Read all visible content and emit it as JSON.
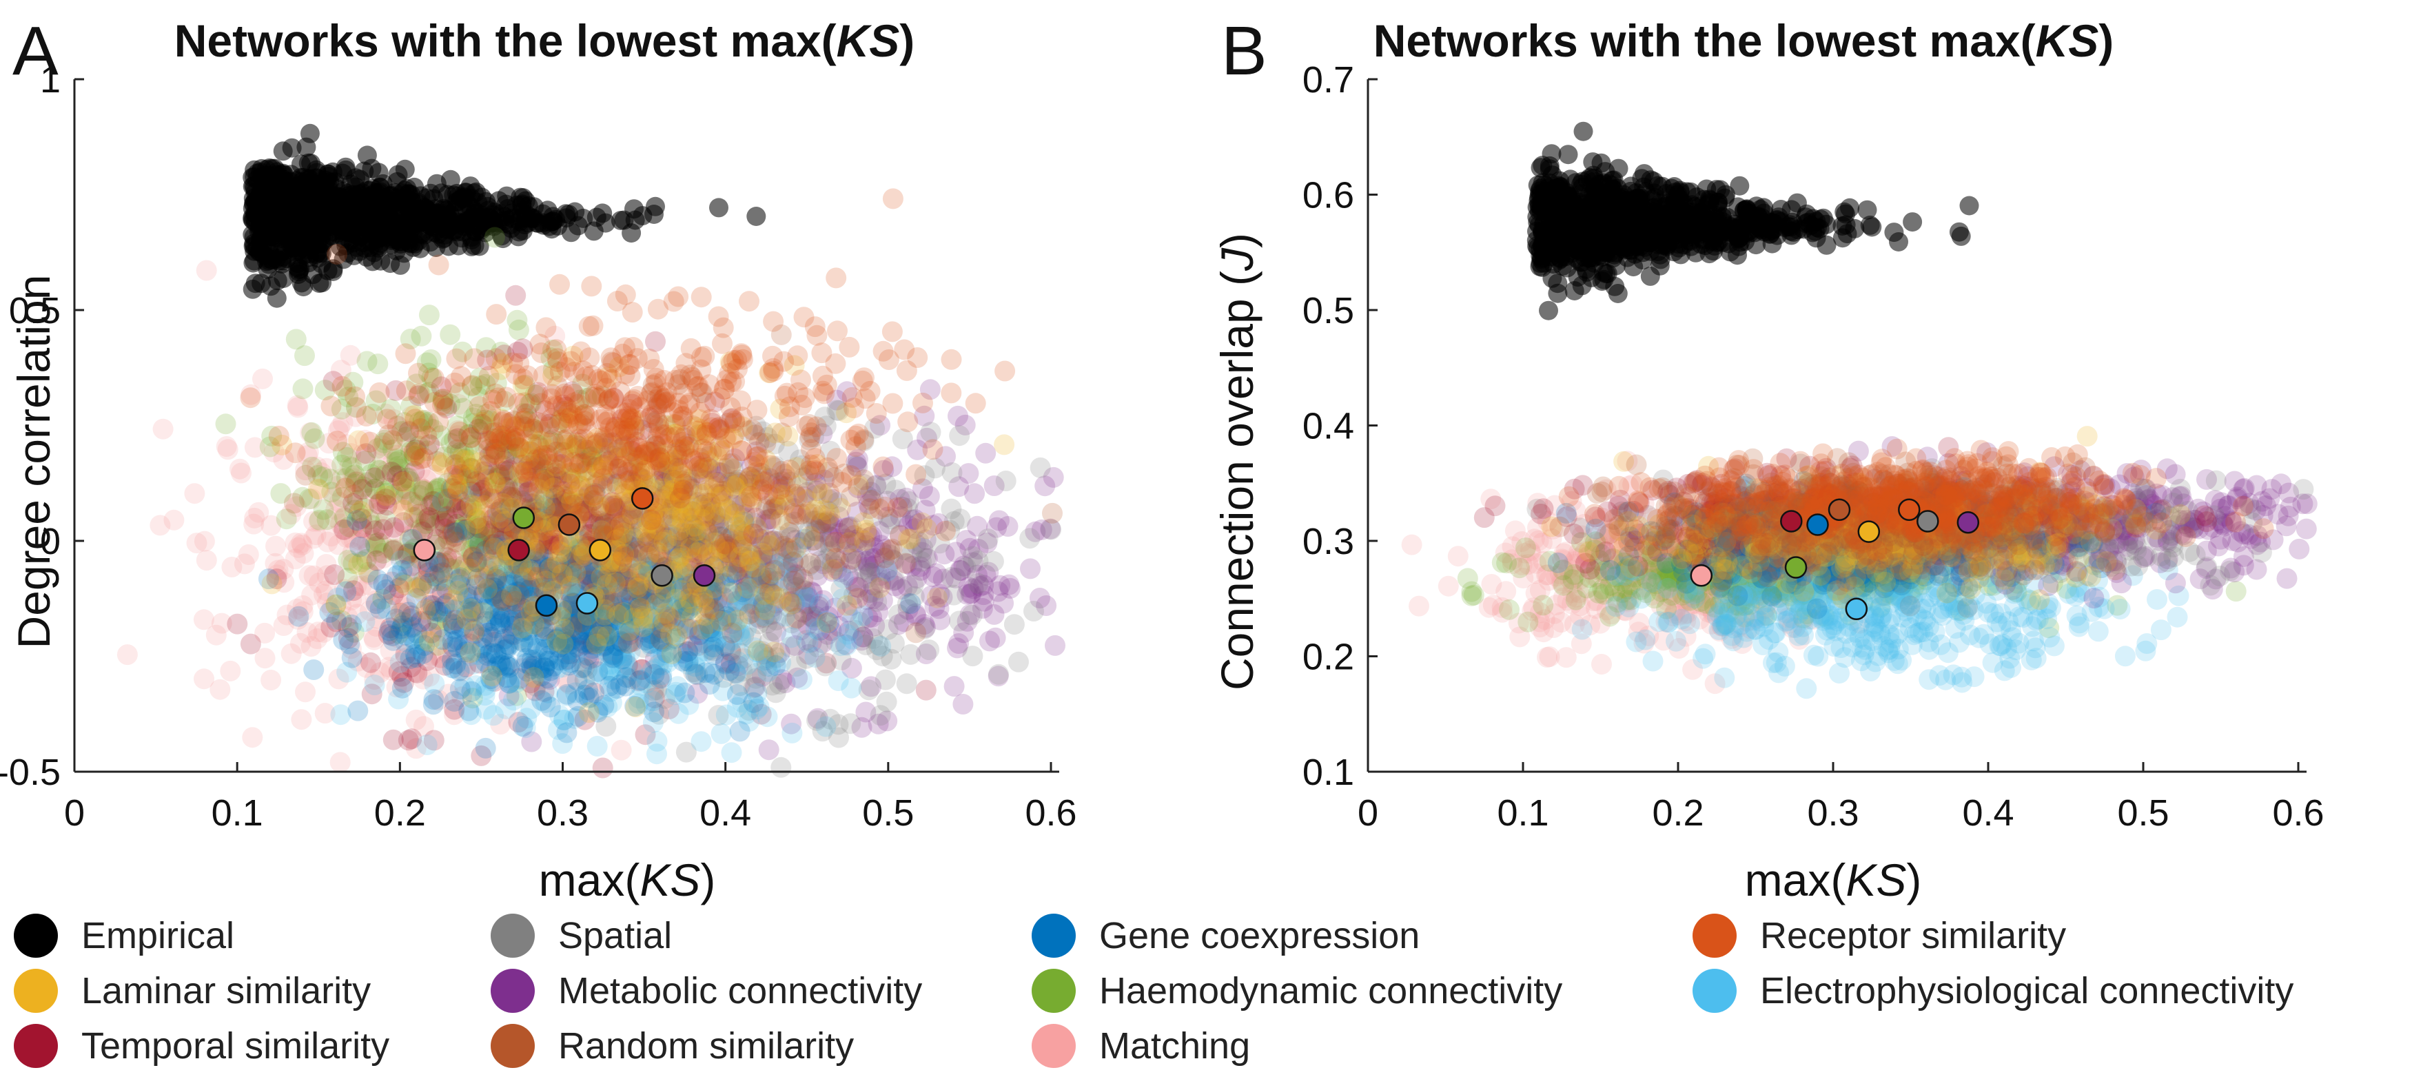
{
  "panels": [
    {
      "letter": "A",
      "title": "Networks with the lowest max(",
      "title_italic": "KS",
      "title_end": ")",
      "xlabel": "max(",
      "xlabel_italic": "KS",
      "xlabel_end": ")",
      "ylabel": "Degree correlation"
    },
    {
      "letter": "B",
      "title": "Networks with the lowest max(",
      "title_italic": "KS",
      "title_end": ")",
      "xlabel": "max(",
      "xlabel_italic": "KS",
      "xlabel_end": ")",
      "ylabel": "Connection overlap (",
      "ylabel_italic": "J",
      "ylabel_end": ")"
    }
  ],
  "legend": {
    "items": [
      {
        "label": "Empirical",
        "color": "#000000"
      },
      {
        "label": "Spatial",
        "color": "#808080"
      },
      {
        "label": "Gene coexpression",
        "color": "#0072BD"
      },
      {
        "label": "Receptor similarity",
        "color": "#D95319"
      },
      {
        "label": "Laminar similarity",
        "color": "#EDB120"
      },
      {
        "label": "Metabolic connectivity",
        "color": "#7E2F8E"
      },
      {
        "label": "Haemodynamic connectivity",
        "color": "#77AC30"
      },
      {
        "label": "Electrophysiological connectivity",
        "color": "#4DBEEE"
      },
      {
        "label": "Temporal similarity",
        "color": "#A2142F"
      },
      {
        "label": "Random similarity",
        "color": "#B5562A"
      },
      {
        "label": "Matching",
        "color": "#F7A1A1"
      }
    ]
  },
  "chart_data": [
    {
      "type": "scatter",
      "title": "Networks with the lowest max(KS)",
      "xlabel": "max(KS)",
      "ylabel": "Degree correlation",
      "xlim": [
        0,
        0.6
      ],
      "ylim": [
        -0.5,
        1
      ],
      "xticks": [
        "0",
        "0.1",
        "0.2",
        "0.3",
        "0.4",
        "0.5",
        "0.6"
      ],
      "yticks": [
        "-0.5",
        "0",
        "0.5",
        "1"
      ],
      "ytick_values": [
        -0.5,
        0,
        0.5,
        1
      ],
      "clouds": [
        {
          "name": "Empirical",
          "color": "#000000",
          "cx": 0.15,
          "cy": 0.7,
          "sx": 0.075,
          "sy": 0.09,
          "shape": "wedge"
        },
        {
          "name": "Matching",
          "color": "#F7A1A1",
          "cx": 0.2,
          "cy": -0.02,
          "sx": 0.06,
          "sy": 0.17
        },
        {
          "name": "Haemodynamic connectivity",
          "color": "#77AC30",
          "cx": 0.24,
          "cy": 0.12,
          "sx": 0.05,
          "sy": 0.15
        },
        {
          "name": "Temporal similarity",
          "color": "#A2142F",
          "cx": 0.3,
          "cy": -0.03,
          "sx": 0.07,
          "sy": 0.17
        },
        {
          "name": "Metabolic connectivity",
          "color": "#7E2F8E",
          "cx": 0.46,
          "cy": -0.06,
          "sx": 0.08,
          "sy": 0.14
        },
        {
          "name": "Spatial",
          "color": "#808080",
          "cx": 0.42,
          "cy": -0.05,
          "sx": 0.07,
          "sy": 0.15
        },
        {
          "name": "Electrophysiological connectivity",
          "color": "#4DBEEE",
          "cx": 0.33,
          "cy": -0.2,
          "sx": 0.07,
          "sy": 0.1
        },
        {
          "name": "Gene coexpression",
          "color": "#0072BD",
          "cx": 0.3,
          "cy": -0.17,
          "sx": 0.06,
          "sy": 0.1
        },
        {
          "name": "Random similarity",
          "color": "#B5562A",
          "cx": 0.35,
          "cy": 0.05,
          "sx": 0.07,
          "sy": 0.12
        },
        {
          "name": "Laminar similarity",
          "color": "#EDB120",
          "cx": 0.34,
          "cy": 0.04,
          "sx": 0.07,
          "sy": 0.14
        },
        {
          "name": "Receptor similarity",
          "color": "#D95319",
          "cx": 0.35,
          "cy": 0.27,
          "sx": 0.08,
          "sy": 0.11
        }
      ],
      "series": [
        {
          "name": "Empirical",
          "color": "#FFFFFF",
          "x": 0.094,
          "y": 0.71
        },
        {
          "name": "Matching",
          "color": "#F7A1A1",
          "x": 0.215,
          "y": -0.02
        },
        {
          "name": "Temporal similarity",
          "color": "#A2142F",
          "x": 0.273,
          "y": -0.02
        },
        {
          "name": "Haemodynamic connectivity",
          "color": "#77AC30",
          "x": 0.276,
          "y": 0.05
        },
        {
          "name": "Random similarity",
          "color": "#B5562A",
          "x": 0.304,
          "y": 0.035
        },
        {
          "name": "Gene coexpression",
          "color": "#0072BD",
          "x": 0.29,
          "y": -0.14
        },
        {
          "name": "Electrophysiological connectivity",
          "color": "#4DBEEE",
          "x": 0.315,
          "y": -0.135
        },
        {
          "name": "Laminar similarity",
          "color": "#EDB120",
          "x": 0.323,
          "y": -0.02
        },
        {
          "name": "Receptor similarity",
          "color": "#D95319",
          "x": 0.349,
          "y": 0.092
        },
        {
          "name": "Spatial",
          "color": "#808080",
          "x": 0.361,
          "y": -0.075
        },
        {
          "name": "Metabolic connectivity",
          "color": "#7E2F8E",
          "x": 0.387,
          "y": -0.075
        }
      ]
    },
    {
      "type": "scatter",
      "title": "Networks with the lowest max(KS)",
      "xlabel": "max(KS)",
      "ylabel": "Connection overlap (J)",
      "xlim": [
        0,
        0.6
      ],
      "ylim": [
        0.1,
        0.7
      ],
      "xticks": [
        "0",
        "0.1",
        "0.2",
        "0.3",
        "0.4",
        "0.5",
        "0.6"
      ],
      "yticks": [
        "0.1",
        "0.2",
        "0.3",
        "0.4",
        "0.5",
        "0.6",
        "0.7"
      ],
      "ytick_values": [
        0.1,
        0.2,
        0.3,
        0.4,
        0.5,
        0.6,
        0.7
      ],
      "clouds": [
        {
          "name": "Empirical",
          "color": "#000000",
          "cx": 0.15,
          "cy": 0.575,
          "sx": 0.075,
          "sy": 0.035,
          "shape": "wedge"
        },
        {
          "name": "Matching",
          "color": "#F7A1A1",
          "cx": 0.19,
          "cy": 0.27,
          "sx": 0.055,
          "sy": 0.03
        },
        {
          "name": "Haemodynamic connectivity",
          "color": "#77AC30",
          "cx": 0.26,
          "cy": 0.27,
          "sx": 0.07,
          "sy": 0.015
        },
        {
          "name": "Electrophysiological connectivity",
          "color": "#4DBEEE",
          "cx": 0.33,
          "cy": 0.24,
          "sx": 0.075,
          "sy": 0.025
        },
        {
          "name": "Metabolic connectivity",
          "color": "#7E2F8E",
          "cx": 0.45,
          "cy": 0.315,
          "sx": 0.09,
          "sy": 0.022
        },
        {
          "name": "Spatial",
          "color": "#808080",
          "cx": 0.38,
          "cy": 0.31,
          "sx": 0.09,
          "sy": 0.02
        },
        {
          "name": "Temporal similarity",
          "color": "#A2142F",
          "cx": 0.29,
          "cy": 0.315,
          "sx": 0.07,
          "sy": 0.02
        },
        {
          "name": "Gene coexpression",
          "color": "#0072BD",
          "cx": 0.31,
          "cy": 0.3,
          "sx": 0.06,
          "sy": 0.02
        },
        {
          "name": "Laminar similarity",
          "color": "#EDB120",
          "cx": 0.33,
          "cy": 0.305,
          "sx": 0.07,
          "sy": 0.02
        },
        {
          "name": "Random similarity",
          "color": "#B5562A",
          "cx": 0.32,
          "cy": 0.32,
          "sx": 0.07,
          "sy": 0.02
        },
        {
          "name": "Receptor similarity",
          "color": "#D95319",
          "cx": 0.35,
          "cy": 0.335,
          "sx": 0.075,
          "sy": 0.018
        }
      ],
      "series": [
        {
          "name": "Empirical",
          "color": "#FFFFFF",
          "x": 0.094,
          "y": 0.57
        },
        {
          "name": "Matching",
          "color": "#F7A1A1",
          "x": 0.215,
          "y": 0.27
        },
        {
          "name": "Haemodynamic connectivity",
          "color": "#77AC30",
          "x": 0.276,
          "y": 0.277
        },
        {
          "name": "Temporal similarity",
          "color": "#A2142F",
          "x": 0.273,
          "y": 0.317
        },
        {
          "name": "Gene coexpression",
          "color": "#0072BD",
          "x": 0.29,
          "y": 0.314
        },
        {
          "name": "Random similarity",
          "color": "#B5562A",
          "x": 0.304,
          "y": 0.327
        },
        {
          "name": "Laminar similarity",
          "color": "#EDB120",
          "x": 0.323,
          "y": 0.308
        },
        {
          "name": "Electrophysiological connectivity",
          "color": "#4DBEEE",
          "x": 0.315,
          "y": 0.241
        },
        {
          "name": "Receptor similarity",
          "color": "#D95319",
          "x": 0.349,
          "y": 0.327
        },
        {
          "name": "Spatial",
          "color": "#808080",
          "x": 0.361,
          "y": 0.317
        },
        {
          "name": "Metabolic connectivity",
          "color": "#7E2F8E",
          "x": 0.387,
          "y": 0.316
        }
      ]
    }
  ]
}
